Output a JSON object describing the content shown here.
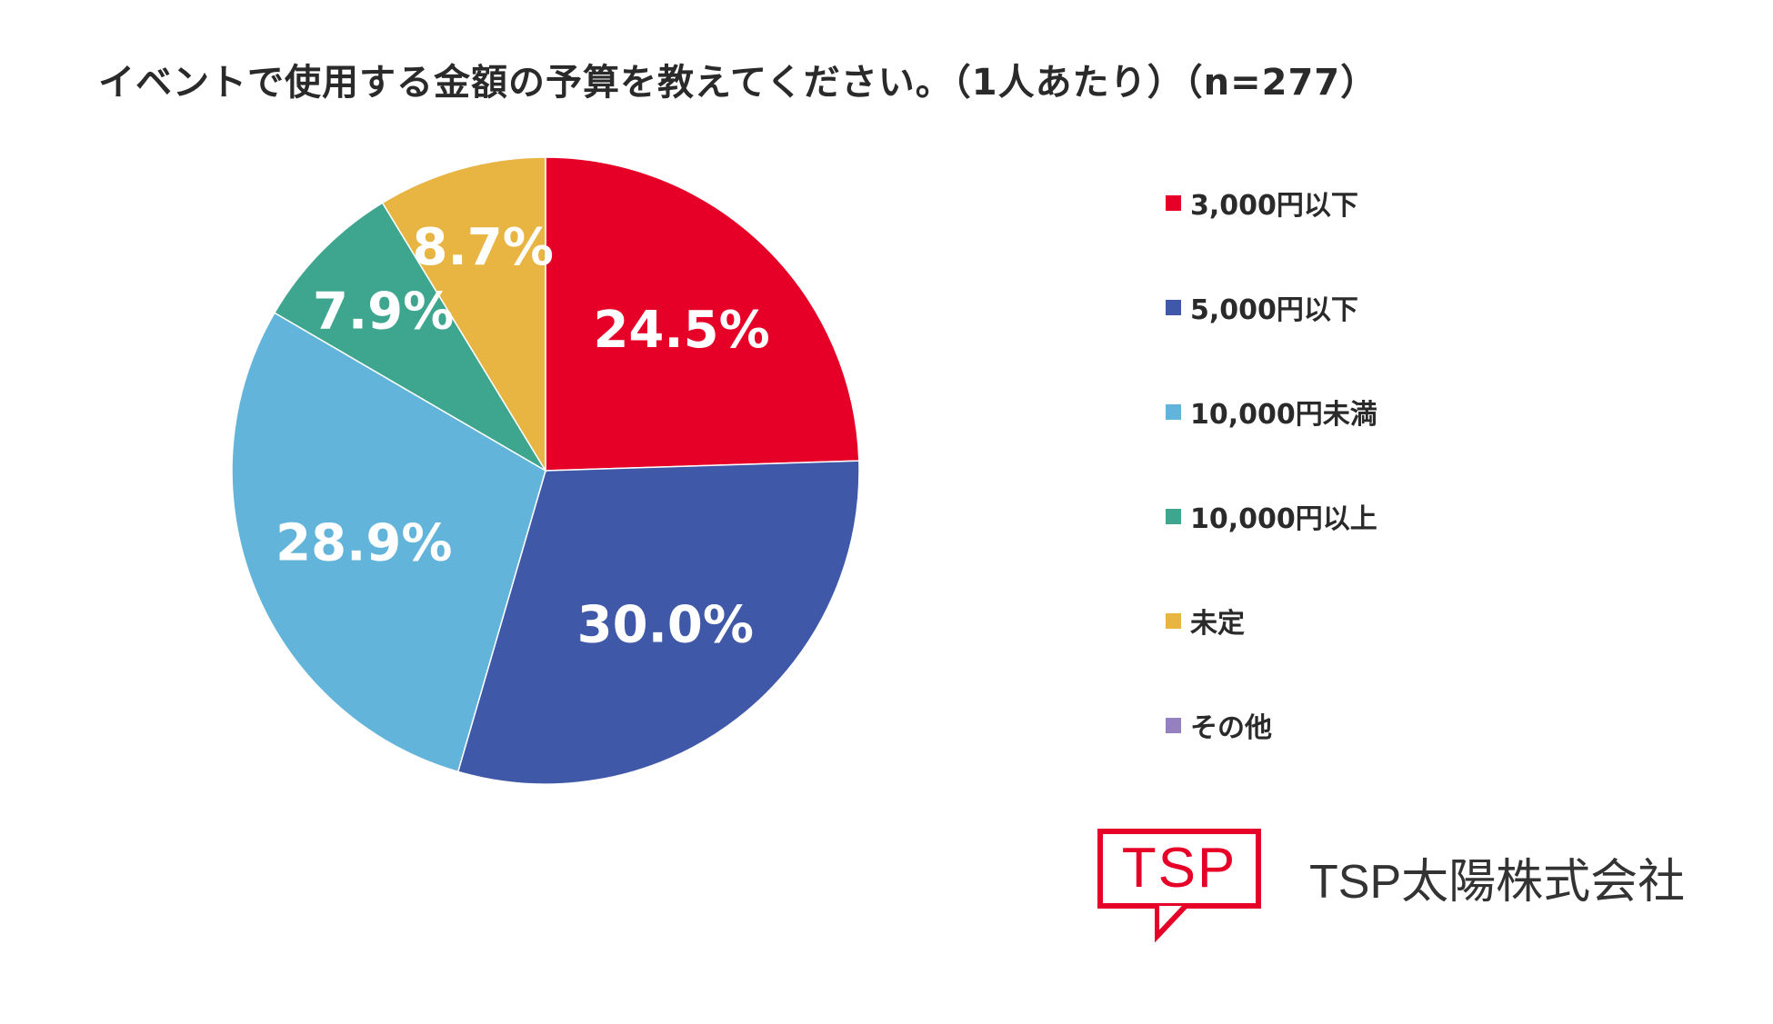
{
  "title": "イベントで使用する金額の予算を教えてください。（1人あたり）（n=277）",
  "chart_data": {
    "type": "pie",
    "title": "イベントで使用する金額の予算を教えてください。（1人あたり）（n=277）",
    "n": 277,
    "unit": "%",
    "slices": [
      {
        "label": "3,000円以下",
        "value": 24.5,
        "display": "24.5%",
        "color": "#e60027"
      },
      {
        "label": "5,000円以下",
        "value": 30.0,
        "display": "30.0%",
        "color": "#3f58a7"
      },
      {
        "label": "10,000円未満",
        "value": 28.9,
        "display": "28.9%",
        "color": "#63b4da"
      },
      {
        "label": "10,000円以上",
        "value": 7.9,
        "display": "7.9%",
        "color": "#3ea68e"
      },
      {
        "label": "未定",
        "value": 8.7,
        "display": "8.7%",
        "color": "#e8b442"
      },
      {
        "label": "その他",
        "value": 0,
        "display": "",
        "color": "#9580c0"
      }
    ],
    "start_angle": "12 o'clock",
    "direction": "clockwise",
    "legend_position": "right"
  },
  "logo": {
    "text": "TSP",
    "color": "#e60027"
  },
  "company_name": "TSP太陽株式会社"
}
